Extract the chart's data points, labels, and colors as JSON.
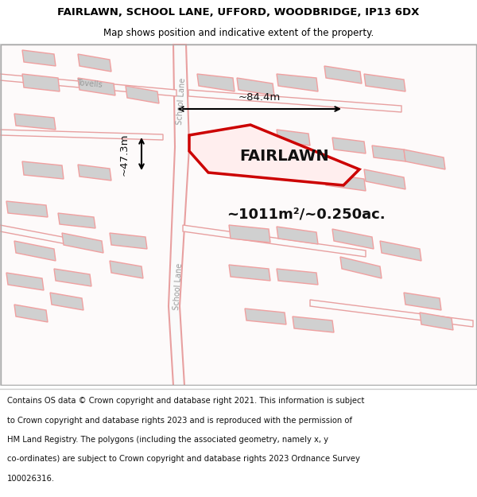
{
  "title_line1": "FAIRLAWN, SCHOOL LANE, UFFORD, WOODBRIDGE, IP13 6DX",
  "title_line2": "Map shows position and indicative extent of the property.",
  "map_bg": "#ffffff",
  "footer_bg": "#ffffff",
  "road_color": "#f5c0c0",
  "building_fill": "#d0d0d0",
  "building_edge": "#f0a0a0",
  "highlight_poly_color": "#cc0000",
  "label_fairlawn": "FAIRLAWN",
  "label_area": "~1011m²/~0.250ac.",
  "label_width": "~84.4m",
  "label_height": "~47.3m",
  "school_lane_label": "School Lane",
  "tovells_label": "Tovells",
  "footer_lines": [
    "Contains OS data © Crown copyright and database right 2021. This information is subject",
    "to Crown copyright and database rights 2023 and is reproduced with the permission of",
    "HM Land Registry. The polygons (including the associated geometry, namely x, y",
    "co-ordinates) are subject to Crown copyright and database rights 2023 Ordnance Survey",
    "100026316."
  ]
}
